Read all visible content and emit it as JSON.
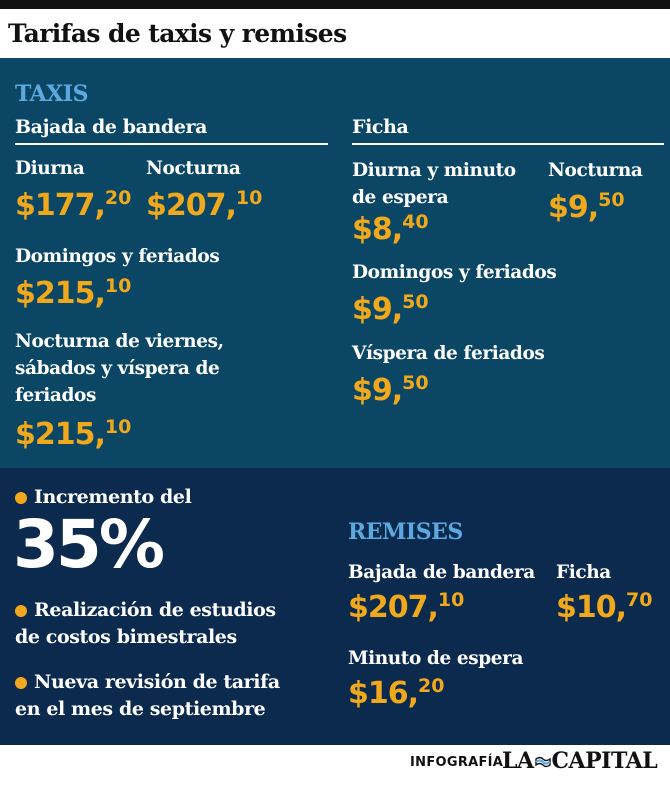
{
  "title": "Tarifas de taxis y remises",
  "taxis": {
    "section_label": "TAXIS",
    "bajada": {
      "heading": "Bajada de bandera",
      "diurna": {
        "label": "Diurna",
        "main": "$177,",
        "cents": "20"
      },
      "nocturna": {
        "label": "Nocturna",
        "main": "$207,",
        "cents": "10"
      },
      "domingos": {
        "label": "Domingos y feriados",
        "main": "$215,",
        "cents": "10"
      },
      "nocturna_viernes": {
        "label_lines": [
          "Nocturna de viernes,",
          "sábados y víspera de",
          "feriados"
        ],
        "main": "$215,",
        "cents": "10"
      }
    },
    "ficha": {
      "heading": "Ficha",
      "diurna": {
        "label_lines": [
          "Diurna y minuto",
          "de espera"
        ],
        "main": "$8,",
        "cents": "40"
      },
      "nocturna": {
        "label": "Nocturna",
        "main": "$9,",
        "cents": "50"
      },
      "domingos": {
        "label": "Domingos y feriados",
        "main": "$9,",
        "cents": "50"
      },
      "vispera": {
        "label": "Víspera de  feriados",
        "main": "$9,",
        "cents": "50"
      }
    }
  },
  "bullets": {
    "b1": "Incremento del",
    "big_percent": "35%",
    "b2_lines": [
      "Realización de estudios",
      "de costos bimestrales"
    ],
    "b3_lines": [
      "Nueva revisión de tarifa",
      "en el mes de septiembre"
    ]
  },
  "remises": {
    "section_label": "REMISES",
    "bajada": {
      "label": "Bajada de bandera",
      "main": "$207,",
      "cents": "10"
    },
    "ficha": {
      "label": "Ficha",
      "main": "$10,",
      "cents": "70"
    },
    "minuto": {
      "label": "Minuto de espera",
      "main": "$16,",
      "cents": "20"
    }
  },
  "footer": {
    "infografia": "INFOGRAFÍA",
    "logo_left": "LA",
    "logo_right": "CAPITAL",
    "logo_icon": "flag-emblem-icon"
  },
  "colors": {
    "top_panel": "#0b4764",
    "bottom_panel": "#0b2a4d",
    "accent": "#f0a81c",
    "section_label": "#5ba9de"
  }
}
